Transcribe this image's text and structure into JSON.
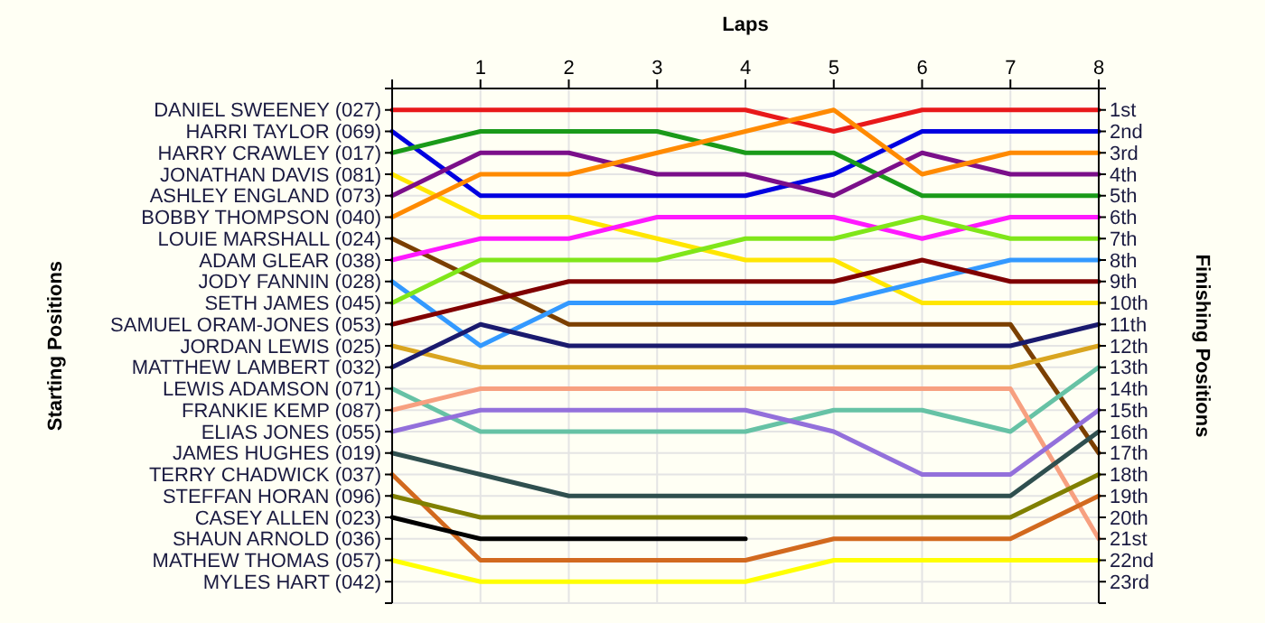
{
  "chart_data": {
    "type": "line",
    "xlabel": "Laps",
    "ylabel": "Finishing Positions",
    "x": [
      0,
      1,
      2,
      3,
      4,
      5,
      6,
      7,
      8
    ],
    "xlim": [
      0,
      8
    ],
    "xticks": [
      {
        "value": 0,
        "label": null
      },
      1,
      2,
      3,
      4,
      5,
      6,
      7,
      8
    ],
    "ylim": [
      24,
      0
    ],
    "yticks": [
      {
        "value": 0,
        "label": null
      },
      {
        "value": 1,
        "label": "1st"
      },
      {
        "value": 2,
        "label": "2nd"
      },
      {
        "value": 3,
        "label": "3rd"
      },
      {
        "value": 4,
        "label": "4th"
      },
      {
        "value": 5,
        "label": "5th"
      },
      {
        "value": 6,
        "label": "6th"
      },
      {
        "value": 7,
        "label": "7th"
      },
      {
        "value": 8,
        "label": "8th"
      },
      {
        "value": 9,
        "label": "9th"
      },
      {
        "value": 10,
        "label": "10th"
      },
      {
        "value": 11,
        "label": "11th"
      },
      {
        "value": 12,
        "label": "12th"
      },
      {
        "value": 13,
        "label": "13th"
      },
      {
        "value": 14,
        "label": "14th"
      },
      {
        "value": 15,
        "label": "15th"
      },
      {
        "value": 16,
        "label": "16th"
      },
      {
        "value": 17,
        "label": "17th"
      },
      {
        "value": 18,
        "label": "18th"
      },
      {
        "value": 19,
        "label": "19th"
      },
      {
        "value": 20,
        "label": "20th"
      },
      {
        "value": 21,
        "label": "21st"
      },
      {
        "value": 22,
        "label": "22nd"
      },
      {
        "value": 23,
        "label": "23rd"
      },
      {
        "value": 24,
        "label": null
      }
    ],
    "annotations": [
      "DANIEL SWEENEY (027)",
      "HARRI TAYLOR (069)",
      "HARRY CRAWLEY (017)",
      "JONATHAN DAVIS (081)",
      "ASHLEY ENGLAND (073)",
      "BOBBY THOMPSON (040)",
      "LOUIE MARSHALL (024)",
      "ADAM GLEAR (038)",
      "JODY FANNIN (028)",
      "SETH JAMES (045)",
      "SAMUEL ORAM-JONES (053)",
      "JORDAN LEWIS (025)",
      "MATTHEW LAMBERT (032)",
      "LEWIS ADAMSON (071)",
      "FRANKIE KEMP (087)",
      "ELIAS JONES (055)",
      "JAMES HUGHES (019)",
      "TERRY CHADWICK (037)",
      "STEFFAN HORAN (096)",
      "CASEY ALLEN (023)",
      "SHAUN ARNOLD (036)",
      "MATHEW THOMAS (057)",
      "MYLES HART (042)",
      "Starting Positions"
    ],
    "grid": true,
    "marker": "none",
    "line_style": "solid",
    "series": [
      {
        "color": "#e8191a",
        "values": [
          1,
          1,
          1,
          1,
          1,
          2,
          1,
          1,
          1
        ]
      },
      {
        "color": "#0000e0",
        "values": [
          2,
          5,
          5,
          5,
          5,
          4,
          2,
          2,
          2
        ]
      },
      {
        "color": "#1a9a1a",
        "values": [
          3,
          2,
          2,
          2,
          3,
          3,
          5,
          5,
          5
        ]
      },
      {
        "color": "#ffe600",
        "values": [
          4,
          6,
          6,
          7,
          8,
          8,
          10,
          10,
          10
        ]
      },
      {
        "color": "#7b0f8a",
        "values": [
          5,
          3,
          3,
          4,
          4,
          5,
          3,
          4,
          4
        ]
      },
      {
        "color": "#ff8a00",
        "values": [
          6,
          4,
          4,
          3,
          2,
          1,
          4,
          3,
          3
        ]
      },
      {
        "color": "#7b3f00",
        "values": [
          7,
          9,
          11,
          11,
          11,
          11,
          11,
          11,
          17
        ]
      },
      {
        "color": "#ff19ff",
        "values": [
          8,
          7,
          7,
          6,
          6,
          6,
          7,
          6,
          6
        ]
      },
      {
        "color": "#3399ff",
        "values": [
          9,
          12,
          10,
          10,
          10,
          10,
          9,
          8,
          8
        ]
      },
      {
        "color": "#80e619",
        "values": [
          10,
          8,
          8,
          8,
          7,
          7,
          6,
          7,
          7
        ]
      },
      {
        "color": "#800000",
        "values": [
          11,
          10,
          9,
          9,
          9,
          9,
          8,
          9,
          9
        ]
      },
      {
        "color": "#d9a520",
        "values": [
          12,
          13,
          13,
          13,
          13,
          13,
          13,
          13,
          12
        ]
      },
      {
        "color": "#1a1a6e",
        "values": [
          13,
          11,
          12,
          12,
          12,
          12,
          12,
          12,
          11
        ]
      },
      {
        "color": "#66c2a5",
        "values": [
          14,
          16,
          16,
          16,
          16,
          15,
          15,
          16,
          13
        ]
      },
      {
        "color": "#f7a080",
        "values": [
          15,
          14,
          14,
          14,
          14,
          14,
          14,
          14,
          21
        ]
      },
      {
        "color": "#9370db",
        "values": [
          16,
          15,
          15,
          15,
          15,
          16,
          18,
          18,
          15
        ]
      },
      {
        "color": "#2f4f4f",
        "values": [
          17,
          18,
          19,
          19,
          19,
          19,
          19,
          19,
          16
        ]
      },
      {
        "color": "#d2691e",
        "values": [
          18,
          22,
          22,
          22,
          22,
          21,
          21,
          21,
          19
        ]
      },
      {
        "color": "#808000",
        "values": [
          19,
          20,
          20,
          20,
          20,
          20,
          20,
          20,
          18
        ]
      },
      {
        "color": "#000000",
        "values": [
          20,
          21,
          21,
          21,
          21,
          null,
          null,
          null,
          null
        ]
      },
      {
        "color": "#ffff00",
        "values": [
          22,
          23,
          23,
          23,
          23,
          22,
          22,
          22,
          22
        ]
      }
    ]
  }
}
